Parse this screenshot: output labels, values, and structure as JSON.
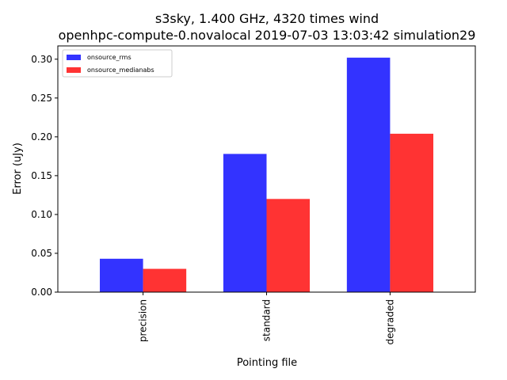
{
  "chart_data": {
    "type": "bar",
    "title_line1": "s3sky, 1.400 GHz, 4320 times wind",
    "title_line2": "openhpc-compute-0.novalocal 2019-07-03 13:03:42 simulation29",
    "xlabel": "Pointing file",
    "ylabel": "Error (uJy)",
    "categories": [
      "precision",
      "standard",
      "degraded"
    ],
    "series": [
      {
        "name": "onsource_rms",
        "color": "#3333ff",
        "values": [
          0.043,
          0.178,
          0.302
        ]
      },
      {
        "name": "onsource_medianabs",
        "color": "#ff3333",
        "values": [
          0.03,
          0.12,
          0.204
        ]
      }
    ],
    "ylim": [
      0,
      0.3171
    ],
    "yticks": [
      "0.00",
      "0.05",
      "0.10",
      "0.15",
      "0.20",
      "0.25",
      "0.30"
    ],
    "legend_position": "top-left",
    "grid": false
  }
}
